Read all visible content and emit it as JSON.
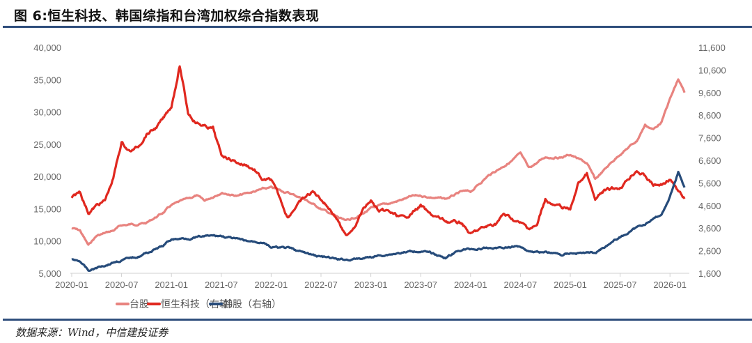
{
  "title": "图 6:恒生科技、韩国综指和台湾加权综合指数表现",
  "source": "数据来源：Wind，中信建投证券",
  "chart_data": {
    "type": "line",
    "title": "图 6:恒生科技、韩国综指和台湾加权综合指数表现",
    "x_ticks": [
      "2020-01",
      "2020-07",
      "2021-01",
      "2021-07",
      "2022-01",
      "2022-07",
      "2023-01",
      "2023-07",
      "2024-01",
      "2024-07",
      "2025-01",
      "2025-07",
      "2026-01"
    ],
    "x_range": [
      "2020-01",
      "2026-03"
    ],
    "y_left": {
      "range": [
        5000,
        40000
      ],
      "ticks": [
        "5,000",
        "10,000",
        "15,000",
        "20,000",
        "25,000",
        "30,000",
        "35,000",
        "40,000"
      ]
    },
    "y_right": {
      "range": [
        1600,
        11600
      ],
      "ticks": [
        "1,600",
        "2,600",
        "3,600",
        "4,600",
        "5,600",
        "6,600",
        "7,600",
        "8,600",
        "9,600",
        "10,600",
        "11,600"
      ]
    },
    "grid": false,
    "legend_position": "bottom",
    "series": [
      {
        "name": "台股",
        "axis": "left",
        "color": "#e8837f",
        "points": [
          [
            "2020-01",
            12000
          ],
          [
            "2020-02",
            11600
          ],
          [
            "2020-03",
            9300
          ],
          [
            "2020-04",
            10800
          ],
          [
            "2020-06",
            11600
          ],
          [
            "2020-07",
            12400
          ],
          [
            "2020-10",
            12800
          ],
          [
            "2020-12",
            14400
          ],
          [
            "2021-01",
            15500
          ],
          [
            "2021-02",
            16000
          ],
          [
            "2021-04",
            17000
          ],
          [
            "2021-05",
            16200
          ],
          [
            "2021-07",
            17600
          ],
          [
            "2021-09",
            17000
          ],
          [
            "2021-12",
            18000
          ],
          [
            "2022-01",
            18200
          ],
          [
            "2022-03",
            17500
          ],
          [
            "2022-05",
            16500
          ],
          [
            "2022-07",
            15000
          ],
          [
            "2022-10",
            13000
          ],
          [
            "2022-12",
            14200
          ],
          [
            "2023-01",
            15000
          ],
          [
            "2023-03",
            15700
          ],
          [
            "2023-06",
            16900
          ],
          [
            "2023-07",
            17000
          ],
          [
            "2023-10",
            16500
          ],
          [
            "2023-12",
            17600
          ],
          [
            "2024-01",
            17600
          ],
          [
            "2024-03",
            20000
          ],
          [
            "2024-06",
            22500
          ],
          [
            "2024-07",
            23500
          ],
          [
            "2024-08",
            21200
          ],
          [
            "2024-10",
            23000
          ],
          [
            "2024-12",
            23000
          ],
          [
            "2025-01",
            23400
          ],
          [
            "2025-03",
            22000
          ],
          [
            "2025-04",
            19500
          ],
          [
            "2025-06",
            22200
          ],
          [
            "2025-07",
            23500
          ],
          [
            "2025-09",
            25500
          ],
          [
            "2025-10",
            28000
          ],
          [
            "2025-11",
            27300
          ],
          [
            "2025-12",
            28500
          ],
          [
            "2026-01",
            32000
          ],
          [
            "2026-02",
            35000
          ],
          [
            "2026-03",
            33000
          ]
        ]
      },
      {
        "name": "恒生科技（右轴）",
        "axis": "right",
        "color": "#e0281f",
        "points": [
          [
            "2020-01",
            4900
          ],
          [
            "2020-02",
            5200
          ],
          [
            "2020-03",
            4300
          ],
          [
            "2020-04",
            4600
          ],
          [
            "2020-05",
            4800
          ],
          [
            "2020-06",
            5800
          ],
          [
            "2020-07",
            7400
          ],
          [
            "2020-08",
            7000
          ],
          [
            "2020-09",
            7200
          ],
          [
            "2020-10",
            7800
          ],
          [
            "2020-11",
            8000
          ],
          [
            "2020-12",
            8400
          ],
          [
            "2021-01",
            9000
          ],
          [
            "2021-02",
            10800
          ],
          [
            "2021-03",
            8700
          ],
          [
            "2021-04",
            8300
          ],
          [
            "2021-05",
            8100
          ],
          [
            "2021-06",
            8000
          ],
          [
            "2021-07",
            6800
          ],
          [
            "2021-08",
            6700
          ],
          [
            "2021-09",
            6500
          ],
          [
            "2021-10",
            6400
          ],
          [
            "2021-11",
            6200
          ],
          [
            "2021-12",
            5700
          ],
          [
            "2022-01",
            5700
          ],
          [
            "2022-03",
            4100
          ],
          [
            "2022-04",
            4600
          ],
          [
            "2022-06",
            5200
          ],
          [
            "2022-07",
            4900
          ],
          [
            "2022-08",
            4500
          ],
          [
            "2022-09",
            4000
          ],
          [
            "2022-10",
            3200
          ],
          [
            "2022-11",
            3700
          ],
          [
            "2022-12",
            4400
          ],
          [
            "2023-01",
            4800
          ],
          [
            "2023-02",
            4300
          ],
          [
            "2023-03",
            4300
          ],
          [
            "2023-05",
            4000
          ],
          [
            "2023-06",
            4300
          ],
          [
            "2023-07",
            4600
          ],
          [
            "2023-08",
            4200
          ],
          [
            "2023-10",
            3900
          ],
          [
            "2023-12",
            3800
          ],
          [
            "2024-01",
            3300
          ],
          [
            "2024-02",
            3500
          ],
          [
            "2024-04",
            3800
          ],
          [
            "2024-05",
            4200
          ],
          [
            "2024-06",
            4000
          ],
          [
            "2024-08",
            3600
          ],
          [
            "2024-09",
            3700
          ],
          [
            "2024-10",
            4900
          ],
          [
            "2024-11",
            4600
          ],
          [
            "2024-12",
            4500
          ],
          [
            "2025-01",
            4400
          ],
          [
            "2025-02",
            5600
          ],
          [
            "2025-03",
            6000
          ],
          [
            "2025-04",
            4800
          ],
          [
            "2025-05",
            5200
          ],
          [
            "2025-07",
            5400
          ],
          [
            "2025-09",
            6200
          ],
          [
            "2025-10",
            5900
          ],
          [
            "2025-11",
            5500
          ],
          [
            "2025-12",
            5500
          ],
          [
            "2026-01",
            5800
          ],
          [
            "2026-02",
            5200
          ],
          [
            "2026-03",
            4900
          ]
        ]
      },
      {
        "name": "韩股（右轴）",
        "axis": "right",
        "color": "#264b7a",
        "points": [
          [
            "2020-01",
            2200
          ],
          [
            "2020-02",
            2150
          ],
          [
            "2020-03",
            1700
          ],
          [
            "2020-06",
            2100
          ],
          [
            "2020-09",
            2350
          ],
          [
            "2020-12",
            2800
          ],
          [
            "2021-01",
            3100
          ],
          [
            "2021-06",
            3250
          ],
          [
            "2021-07",
            3250
          ],
          [
            "2021-10",
            3000
          ],
          [
            "2021-12",
            3000
          ],
          [
            "2022-01",
            2750
          ],
          [
            "2022-03",
            2700
          ],
          [
            "2022-06",
            2400
          ],
          [
            "2022-09",
            2200
          ],
          [
            "2022-10",
            2200
          ],
          [
            "2022-12",
            2250
          ],
          [
            "2023-03",
            2450
          ],
          [
            "2023-07",
            2600
          ],
          [
            "2023-10",
            2300
          ],
          [
            "2023-12",
            2650
          ],
          [
            "2024-03",
            2700
          ],
          [
            "2024-07",
            2800
          ],
          [
            "2024-08",
            2600
          ],
          [
            "2024-11",
            2500
          ],
          [
            "2024-12",
            2400
          ],
          [
            "2025-01",
            2500
          ],
          [
            "2025-04",
            2500
          ],
          [
            "2025-06",
            3000
          ],
          [
            "2025-07",
            3200
          ],
          [
            "2025-10",
            3800
          ],
          [
            "2025-11",
            4000
          ],
          [
            "2025-12",
            4200
          ],
          [
            "2026-01",
            5000
          ],
          [
            "2026-02",
            6100
          ],
          [
            "2026-03",
            5400
          ]
        ]
      }
    ]
  }
}
